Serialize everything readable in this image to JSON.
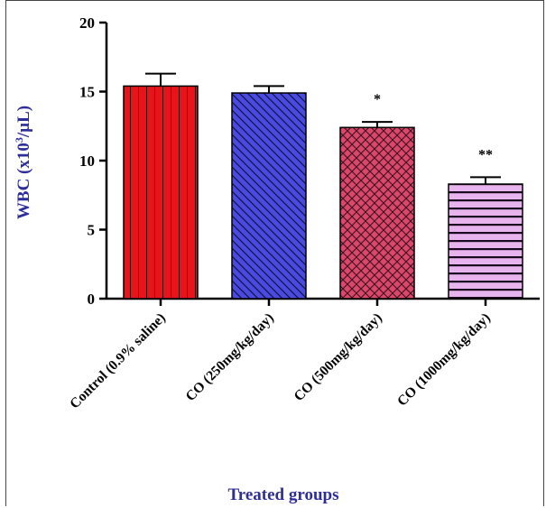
{
  "chart_data": {
    "type": "bar",
    "title": "",
    "xlabel": "Treated groups",
    "ylabel_main": "WBC (x10",
    "ylabel_sup": "3",
    "ylabel_tail": "/µL)",
    "ylim": [
      0,
      20
    ],
    "yticks": [
      "0",
      "5",
      "10",
      "15",
      "20"
    ],
    "categories": [
      "Control (0.9% saline)",
      "CO (250mg/kg/day)",
      "CO (500mg/kg/day)",
      "CO (1000mg/kg/day)"
    ],
    "values": [
      15.4,
      14.9,
      12.4,
      8.3
    ],
    "errors": [
      0.9,
      0.5,
      0.4,
      0.5
    ],
    "significance": [
      "",
      "",
      "*",
      "**"
    ],
    "colors": [
      "#e8141c",
      "#4a4adf",
      "#d9476b",
      "#e8b4ee"
    ],
    "patterns": [
      "vertical-lines",
      "diagonal-lines",
      "crosshatch",
      "horizontal-lines"
    ]
  }
}
